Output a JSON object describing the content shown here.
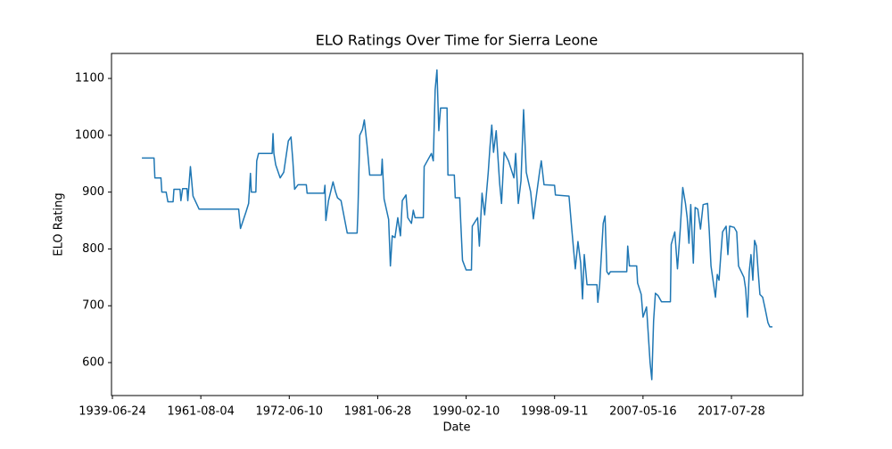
{
  "chart_data": {
    "type": "line",
    "title": "ELO Ratings Over Time for Sierra Leone",
    "x_label": "Date",
    "y_label": "ELO Rating",
    "xlim": [
      "1939-04-04",
      "2025-09-24"
    ],
    "xticks": [
      "1939-06-24",
      "1961-08-04",
      "1972-06-10",
      "1981-06-28",
      "1990-02-10",
      "1998-09-11",
      "2007-05-16",
      "2017-07-28"
    ],
    "ylim": [
      542,
      1144
    ],
    "yticks": [
      600,
      700,
      800,
      900,
      1000,
      1100
    ],
    "grid": false,
    "x": [
      "1946-11-07",
      "1949-11-20",
      "1950-02-07",
      "1951-08-14",
      "1951-11-03",
      "1952-12-02",
      "1953-05-10",
      "1954-08-28",
      "1954-11-14",
      "1956-05-21",
      "1956-08-10",
      "1957-01-15",
      "1958-02-14",
      "1958-05-03",
      "1958-12-27",
      "1959-08-21",
      "1961-02-28",
      "1966-03-27",
      "1966-06-16",
      "1967-02-17",
      "1967-06-16",
      "1967-09-05",
      "1967-10-15",
      "1968-05-04",
      "1968-06-13",
      "1968-09-02",
      "1970-05-04",
      "1970-06-13",
      "1970-07-22",
      "1970-10-11",
      "1971-04-29",
      "1971-10-08",
      "1972-04-29",
      "1972-08-14",
      "1972-10-22",
      "1972-12-27",
      "1973-05-07",
      "1974-03-09",
      "1974-04-08",
      "1976-01-01",
      "1976-02-04",
      "1976-03-09",
      "1976-06-16",
      "1976-12-02",
      "1977-03-09",
      "1977-05-17",
      "1977-09-27",
      "1978-05-17",
      "1979-05-21",
      "1979-06-23",
      "1979-08-28",
      "1979-12-05",
      "1980-02-14",
      "1980-05-21",
      "1980-09-02",
      "1981-11-05",
      "1981-12-05",
      "1982-02-10",
      "1982-07-22",
      "1982-09-23",
      "1982-11-28",
      "1983-03-05",
      "1983-06-13",
      "1983-09-16",
      "1983-11-21",
      "1984-04-01",
      "1984-06-02",
      "1984-10-11",
      "1984-12-16",
      "1985-02-17",
      "1985-12-09",
      "1986-01-08",
      "1986-09-23",
      "1986-11-28",
      "1987-02-03",
      "1987-04-08",
      "1987-06-13",
      "1987-08-14",
      "1988-04-01",
      "1988-05-03",
      "1988-12-16",
      "1989-01-18",
      "1989-06-27",
      "1989-08-01",
      "1989-10-04",
      "1990-02-10",
      "1990-08-17",
      "1990-09-16",
      "1991-03-23",
      "1991-05-25",
      "1991-08-28",
      "1991-11-28",
      "1992-04-04",
      "1992-06-05",
      "1992-08-07",
      "1992-10-08",
      "1993-01-11",
      "1993-05-14",
      "1993-07-19",
      "1993-10-19",
      "1994-03-23",
      "1994-10-01",
      "1994-12-02",
      "1995-03-05",
      "1995-06-09",
      "1995-09-09",
      "1995-12-13",
      "1996-05-17",
      "1996-08-21",
      "1996-11-25",
      "1997-03-27",
      "1997-05-28",
      "1997-09-02",
      "1998-09-11",
      "1998-10-11",
      "2000-02-10",
      "2000-05-14",
      "2000-09-23",
      "2000-12-27",
      "2001-04-04",
      "2001-06-09",
      "2001-08-10",
      "2001-11-17",
      "2002-11-07",
      "2002-12-09",
      "2003-02-14",
      "2003-06-20",
      "2003-08-25",
      "2003-10-29",
      "2004-01-04",
      "2004-03-05",
      "2005-10-11",
      "2005-11-14",
      "2006-01-15",
      "2006-10-01",
      "2006-11-03",
      "2007-03-13",
      "2007-05-16",
      "2007-10-11",
      "2007-12-24",
      "2008-03-09",
      "2008-05-21",
      "2008-08-04",
      "2008-10-19",
      "2009-02-07",
      "2009-07-04",
      "2010-07-13",
      "2010-08-17",
      "2011-01-15",
      "2011-05-07",
      "2011-08-25",
      "2011-12-16",
      "2012-04-08",
      "2012-06-20",
      "2012-09-02",
      "2012-11-17",
      "2013-03-05",
      "2013-05-21",
      "2013-09-09",
      "2014-01-01",
      "2014-04-22",
      "2014-10-26",
      "2015-01-08",
      "2015-03-20",
      "2015-09-23",
      "2015-12-09",
      "2016-02-21",
      "2016-05-07",
      "2016-07-19",
      "2016-12-16",
      "2017-02-28",
      "2017-05-14",
      "2017-11-17",
      "2018-03-05",
      "2018-05-21",
      "2019-01-01",
      "2019-03-13",
      "2019-05-28",
      "2019-08-10",
      "2019-10-22",
      "2020-01-08",
      "2020-03-20",
      "2020-06-05",
      "2020-08-17",
      "2020-10-29",
      "2021-02-21",
      "2021-06-13",
      "2021-10-01",
      "2021-12-16",
      "2022-04-04"
    ],
    "series": [
      {
        "name": "Sierra Leone",
        "color": "#1f77b4",
        "values": [
          960,
          960,
          925,
          925,
          900,
          900,
          883,
          883,
          905,
          905,
          885,
          906,
          906,
          885,
          945,
          893,
          870,
          870,
          836,
          865,
          880,
          933,
          900,
          900,
          955,
          968,
          968,
          1003,
          968,
          948,
          925,
          935,
          990,
          997,
          955,
          905,
          913,
          913,
          898,
          898,
          912,
          850,
          885,
          918,
          900,
          890,
          885,
          828,
          828,
          872,
          1000,
          1010,
          1027,
          985,
          930,
          930,
          958,
          888,
          852,
          770,
          823,
          820,
          855,
          823,
          885,
          895,
          855,
          845,
          868,
          855,
          855,
          945,
          968,
          955,
          1080,
          1115,
          1008,
          1048,
          1048,
          930,
          930,
          890,
          890,
          848,
          780,
          763,
          763,
          840,
          855,
          805,
          898,
          860,
          935,
          980,
          1018,
          970,
          1008,
          915,
          880,
          970,
          955,
          925,
          968,
          880,
          920,
          1045,
          935,
          900,
          853,
          890,
          935,
          955,
          913,
          912,
          895,
          893,
          838,
          765,
          813,
          775,
          712,
          790,
          737,
          737,
          706,
          738,
          845,
          858,
          760,
          755,
          760,
          760,
          805,
          770,
          770,
          740,
          720,
          680,
          698,
          650,
          600,
          570,
          673,
          722,
          718,
          707,
          707,
          808,
          830,
          765,
          830,
          908,
          880,
          855,
          810,
          878,
          775,
          873,
          870,
          835,
          878,
          880,
          830,
          770,
          715,
          755,
          745,
          790,
          830,
          840,
          790,
          840,
          838,
          830,
          770,
          750,
          730,
          680,
          760,
          790,
          745,
          815,
          805,
          760,
          720,
          715,
          693,
          670,
          663,
          663
        ]
      }
    ]
  }
}
